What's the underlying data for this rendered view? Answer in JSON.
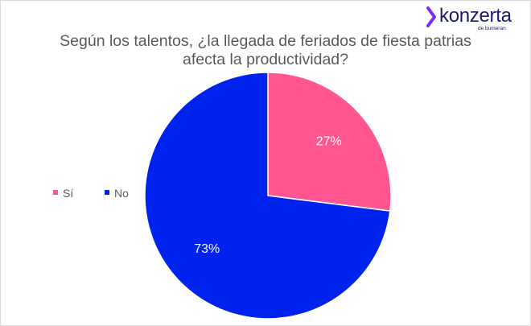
{
  "brand": {
    "name": "konzerta",
    "tagline": "de bumeran"
  },
  "chart_data": {
    "type": "pie",
    "title_lines": [
      "Según los talentos, ¿la llegada de feriados de fiesta patrias",
      "afecta la productividad?"
    ],
    "slices": [
      {
        "label": "Sí",
        "value": 27,
        "value_label": "27%",
        "color": "#ff5591"
      },
      {
        "label": "No",
        "value": 73,
        "value_label": "73%",
        "color": "#0022ee"
      }
    ],
    "start_angle_deg": 0,
    "direction": "clockwise",
    "legend_position": "left"
  }
}
